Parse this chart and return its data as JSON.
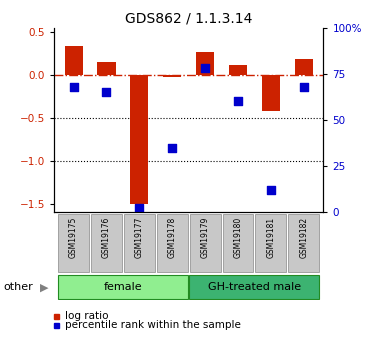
{
  "title": "GDS862 / 1.1.3.14",
  "samples": [
    "GSM19175",
    "GSM19176",
    "GSM19177",
    "GSM19178",
    "GSM19179",
    "GSM19180",
    "GSM19181",
    "GSM19182"
  ],
  "log_ratio": [
    0.33,
    0.15,
    -1.5,
    -0.03,
    0.27,
    0.12,
    -0.42,
    0.18
  ],
  "percentile_rank": [
    68,
    65,
    2,
    35,
    78,
    60,
    12,
    68
  ],
  "groups": [
    {
      "label": "female",
      "start": 0,
      "end": 4,
      "color": "#90EE90"
    },
    {
      "label": "GH-treated male",
      "start": 4,
      "end": 8,
      "color": "#3CB371"
    }
  ],
  "ylim_left": [
    -1.6,
    0.55
  ],
  "ylim_right": [
    0,
    100
  ],
  "hline_y": 0,
  "dotted_lines": [
    -0.5,
    -1.0
  ],
  "bar_color": "#cc2200",
  "dot_color": "#0000cc",
  "bar_width": 0.55,
  "dot_size": 28,
  "group_box_gray": "#c8c8c8",
  "other_label": "other",
  "legend_items": [
    "log ratio",
    "percentile rank within the sample"
  ],
  "left_yticks": [
    -1.5,
    -1.0,
    -0.5,
    0.0,
    0.5
  ],
  "right_yticks": [
    0,
    25,
    50,
    75,
    100
  ],
  "right_yticklabels": [
    "0",
    "25",
    "50",
    "75",
    "100%"
  ]
}
